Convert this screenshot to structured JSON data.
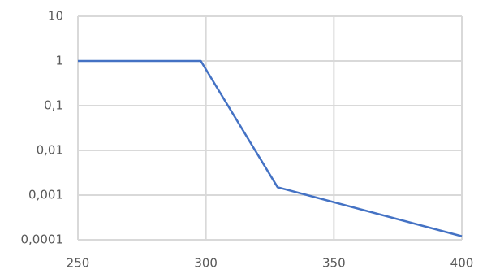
{
  "chart_data": {
    "type": "line",
    "x": [
      250,
      298,
      328,
      400
    ],
    "values": [
      1,
      1,
      0.0015,
      0.00012
    ],
    "color": "#4472c4",
    "xlim": [
      250,
      400
    ],
    "xticks": [
      250,
      300,
      350,
      400
    ],
    "ylim": [
      0.0001,
      10
    ],
    "ylog": true,
    "yticks": [
      {
        "value": 0.0001,
        "label": "0,0001"
      },
      {
        "value": 0.001,
        "label": "0,001"
      },
      {
        "value": 0.01,
        "label": "0,01"
      },
      {
        "value": 0.1,
        "label": "0,1"
      },
      1,
      10
    ],
    "grid": true
  }
}
